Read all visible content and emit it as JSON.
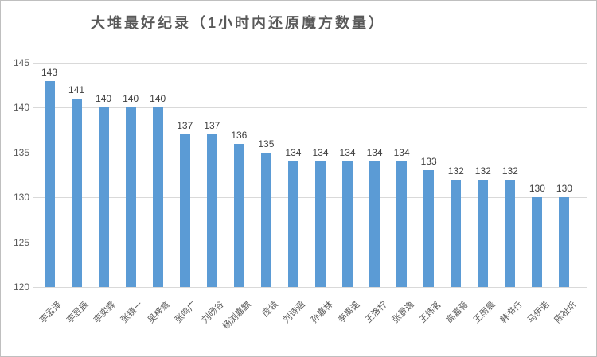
{
  "chart_data": {
    "type": "bar",
    "title": "大堆最好纪录（1小时内还原魔方数量）",
    "categories": [
      "李孟泽",
      "李昱辰",
      "李奕霖",
      "张镜一",
      "吴梓翕",
      "张鸣广",
      "刘旸谷",
      "杨浏嘉麒",
      "庞领",
      "刘诗涵",
      "孙嘉林",
      "李禹诺",
      "王洛柠",
      "张景逸",
      "王炜茗",
      "高嘉蒋",
      "王雨晨",
      "韩书行",
      "马伊诺",
      "陈祉圻"
    ],
    "values": [
      143,
      141,
      140,
      140,
      140,
      137,
      137,
      136,
      135,
      134,
      134,
      134,
      134,
      134,
      133,
      132,
      132,
      132,
      130,
      130
    ],
    "xlabel": "",
    "ylabel": "",
    "ylim": [
      120,
      145
    ],
    "yticks": [
      120,
      125,
      130,
      135,
      140,
      145
    ],
    "grid": true,
    "legend_position": "none",
    "bar_color": "#5B9BD5"
  },
  "colors": {
    "bar": "#5B9BD5",
    "title_text": "#595959",
    "axis_text": "#595959",
    "value_label_text": "#404040",
    "gridline": "#D9D9D9",
    "border": "#BFBFBF",
    "background": "#FFFFFF"
  }
}
